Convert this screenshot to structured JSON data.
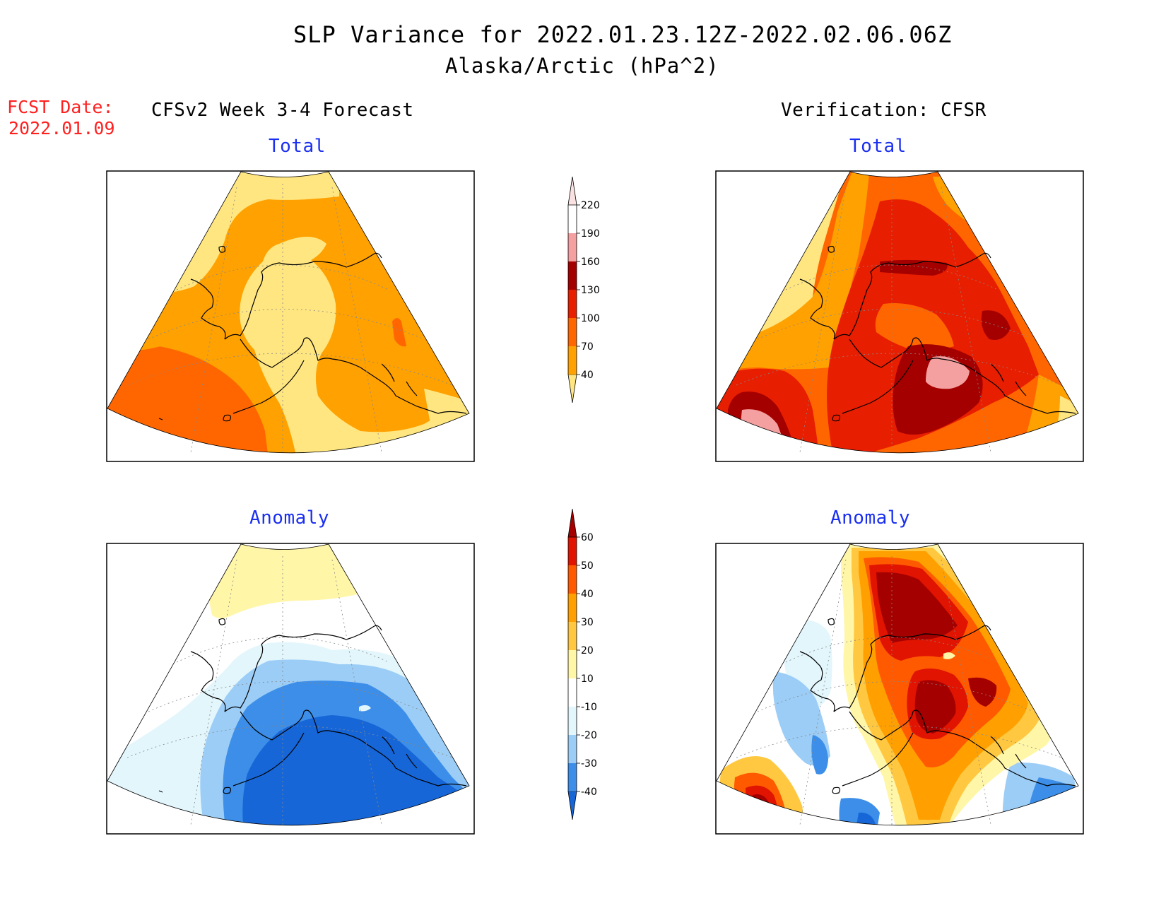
{
  "header": {
    "title": "SLP Variance for 2022.01.23.12Z-2022.02.06.06Z",
    "subtitle": "Alaska/Arctic (hPa^2)"
  },
  "fcst": {
    "label": "FCST Date:",
    "date": "2022.01.09"
  },
  "columns": {
    "left": "CFSv2 Week 3-4 Forecast",
    "right": "Verification: CFSR"
  },
  "panels": {
    "forecast_total": "Total",
    "verification_total": "Total",
    "forecast_anomaly": "Anomaly",
    "verification_anomaly": "Anomaly"
  },
  "colorbar_total": {
    "levels": [
      "40",
      "70",
      "100",
      "130",
      "160",
      "190",
      "220"
    ],
    "colors": [
      "#ffe680",
      "#ffa100",
      "#ff6600",
      "#e81e00",
      "#a50000",
      "#f4a0a0",
      "#fbe2e2"
    ]
  },
  "colorbar_anomaly": {
    "levels": [
      "-40",
      "-30",
      "-20",
      "-10",
      "10",
      "20",
      "30",
      "40",
      "50",
      "60"
    ],
    "colors": [
      "#1666d8",
      "#3c8ee8",
      "#9ccdf6",
      "#e2f6fc",
      "#ffffff",
      "#fff6a8",
      "#ffc840",
      "#ffa000",
      "#ff5a00",
      "#e01400",
      "#a50000"
    ]
  }
}
